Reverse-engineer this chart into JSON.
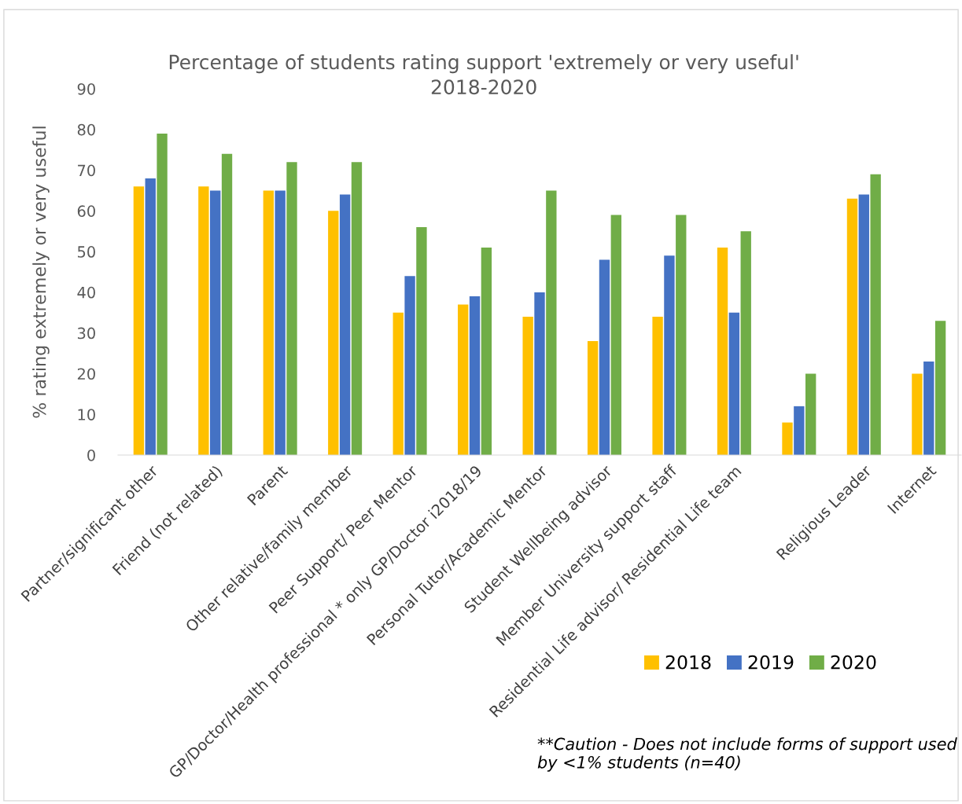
{
  "chart_data": {
    "type": "bar",
    "title": "Percentage of students rating support 'extremely or very useful'\n2018-2020",
    "ylabel": "% rating extremely or very useful",
    "categories": [
      "Partner/significant other",
      "Friend (not related)",
      "Parent",
      "Other relative/family member",
      "Peer Support/ Peer Mentor",
      "GP/Doctor/Health professional * only GP/Doctor i2018/19",
      "Personal Tutor/Academic Mentor",
      "Student Wellbeing advisor",
      "Member University support staff",
      "Residential Life advisor/ Residential Life team",
      null,
      "Religious Leader",
      "Internet"
    ],
    "series": [
      {
        "name": "2018",
        "color": "#ffc000",
        "values": [
          66,
          66,
          65,
          60,
          35,
          37,
          34,
          28,
          34,
          51,
          8,
          63,
          20
        ]
      },
      {
        "name": "2019",
        "color": "#4472c4",
        "values": [
          68,
          65,
          65,
          64,
          44,
          39,
          40,
          48,
          49,
          35,
          12,
          64,
          23
        ]
      },
      {
        "name": "2020",
        "color": "#70ad47",
        "values": [
          79,
          74,
          72,
          72,
          56,
          51,
          65,
          59,
          59,
          55,
          20,
          69,
          33
        ]
      }
    ],
    "ylim": [
      0,
      90
    ],
    "yticks": [
      0,
      10,
      20,
      30,
      40,
      50,
      60,
      70,
      80,
      90
    ],
    "grid": false,
    "legend": "bottom right",
    "annotations": [
      "**Caution - Does not include forms of support used by <1% students (n=40)"
    ]
  }
}
